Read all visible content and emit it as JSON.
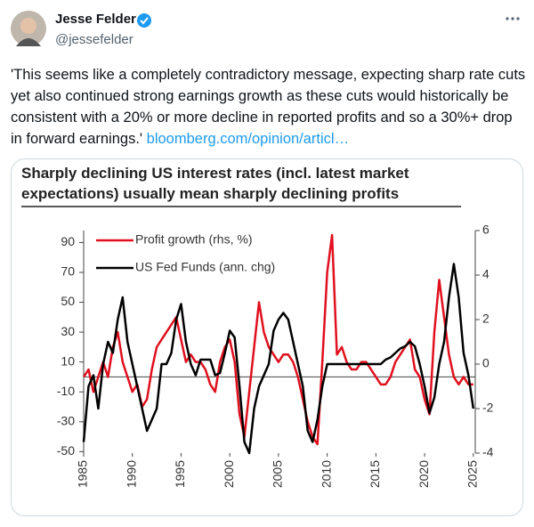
{
  "post": {
    "author": "Jesse Felder",
    "handle": "@jessefelder",
    "text": "'This seems like a completely contradictory message, expecting sharp rate cuts yet also continued strong earnings growth as these cuts would historically be consistent with a 20% or more decline in reported profits and so a 30%+ drop in forward earnings.'",
    "link": "bloomberg.com/opinion/articl…"
  },
  "chart_data": {
    "type": "line",
    "title": "Sharply declining US interest rates (incl. latest market expectations) usually mean sharply declining profits",
    "x": [
      1985,
      1985.5,
      1986,
      1986.5,
      1987,
      1987.5,
      1988,
      1988.5,
      1989,
      1989.5,
      1990,
      1990.5,
      1991,
      1991.5,
      1992,
      1992.5,
      1993,
      1993.5,
      1994,
      1994.5,
      1995,
      1995.5,
      1996,
      1996.5,
      1997,
      1997.5,
      1998,
      1998.5,
      1999,
      1999.5,
      2000,
      2000.5,
      2001,
      2001.5,
      2002,
      2002.5,
      2003,
      2003.5,
      2004,
      2004.5,
      2005,
      2005.5,
      2006,
      2006.5,
      2007,
      2007.5,
      2008,
      2008.5,
      2009,
      2009.5,
      2010,
      2010.5,
      2011,
      2011.5,
      2012,
      2012.5,
      2013,
      2013.5,
      2014,
      2014.5,
      2015,
      2015.5,
      2016,
      2016.5,
      2017,
      2017.5,
      2018,
      2018.5,
      2019,
      2019.5,
      2020,
      2020.5,
      2021,
      2021.5,
      2022,
      2022.5,
      2023,
      2023.5,
      2024,
      2024.5,
      2025
    ],
    "series": [
      {
        "name": "Profit growth (rhs, %)",
        "color": "#e0101e",
        "values": [
          0,
          5,
          -10,
          0,
          10,
          0,
          20,
          30,
          10,
          0,
          -10,
          -5,
          -20,
          -15,
          5,
          20,
          25,
          30,
          35,
          40,
          25,
          10,
          15,
          10,
          10,
          5,
          -5,
          -10,
          10,
          20,
          25,
          10,
          -25,
          -40,
          -10,
          20,
          50,
          30,
          20,
          15,
          10,
          15,
          15,
          10,
          0,
          -15,
          -30,
          -40,
          -45,
          10,
          70,
          95,
          15,
          20,
          10,
          5,
          5,
          10,
          10,
          5,
          0,
          -5,
          -5,
          0,
          10,
          15,
          20,
          25,
          5,
          0,
          -15,
          -25,
          30,
          65,
          40,
          15,
          0,
          -5,
          0,
          -5,
          -5
        ]
      },
      {
        "name": "US Fed Funds (ann. chg)",
        "color": "#000000",
        "axis": "y2",
        "values": [
          -3.5,
          -1,
          -0.5,
          -2,
          0,
          1,
          0.5,
          2,
          3,
          1,
          0,
          -1,
          -2,
          -3,
          -2.5,
          -2,
          0,
          0,
          0.5,
          2,
          2.7,
          1,
          0,
          -0.5,
          0.2,
          0.2,
          0.2,
          -0.5,
          -0.4,
          0.5,
          1.5,
          1.2,
          -1,
          -3.5,
          -4,
          -2,
          -1,
          -0.5,
          0,
          1.5,
          2,
          2.3,
          2,
          1,
          0,
          -1,
          -3,
          -3.5,
          -2.5,
          -1,
          0,
          0,
          0,
          0,
          0,
          0,
          0,
          0,
          0,
          0,
          0,
          0,
          0.2,
          0.3,
          0.5,
          0.7,
          0.8,
          1,
          0.8,
          0,
          -1,
          -2.2,
          -1.5,
          0,
          1,
          3,
          4.5,
          3,
          0.5,
          -0.5,
          -2
        ]
      }
    ],
    "xlim": [
      1985,
      2025.2
    ],
    "xticks": [
      1985,
      1990,
      1995,
      2000,
      2005,
      2010,
      2015,
      2020,
      2025
    ],
    "ylim": [
      -51,
      98
    ],
    "yticks": [
      90,
      70,
      50,
      30,
      10,
      -10,
      -30,
      -50
    ],
    "y2lim": [
      -4,
      6
    ],
    "y2ticks": [
      6,
      4,
      2,
      0,
      -2,
      -4
    ],
    "legend": "upper left"
  }
}
